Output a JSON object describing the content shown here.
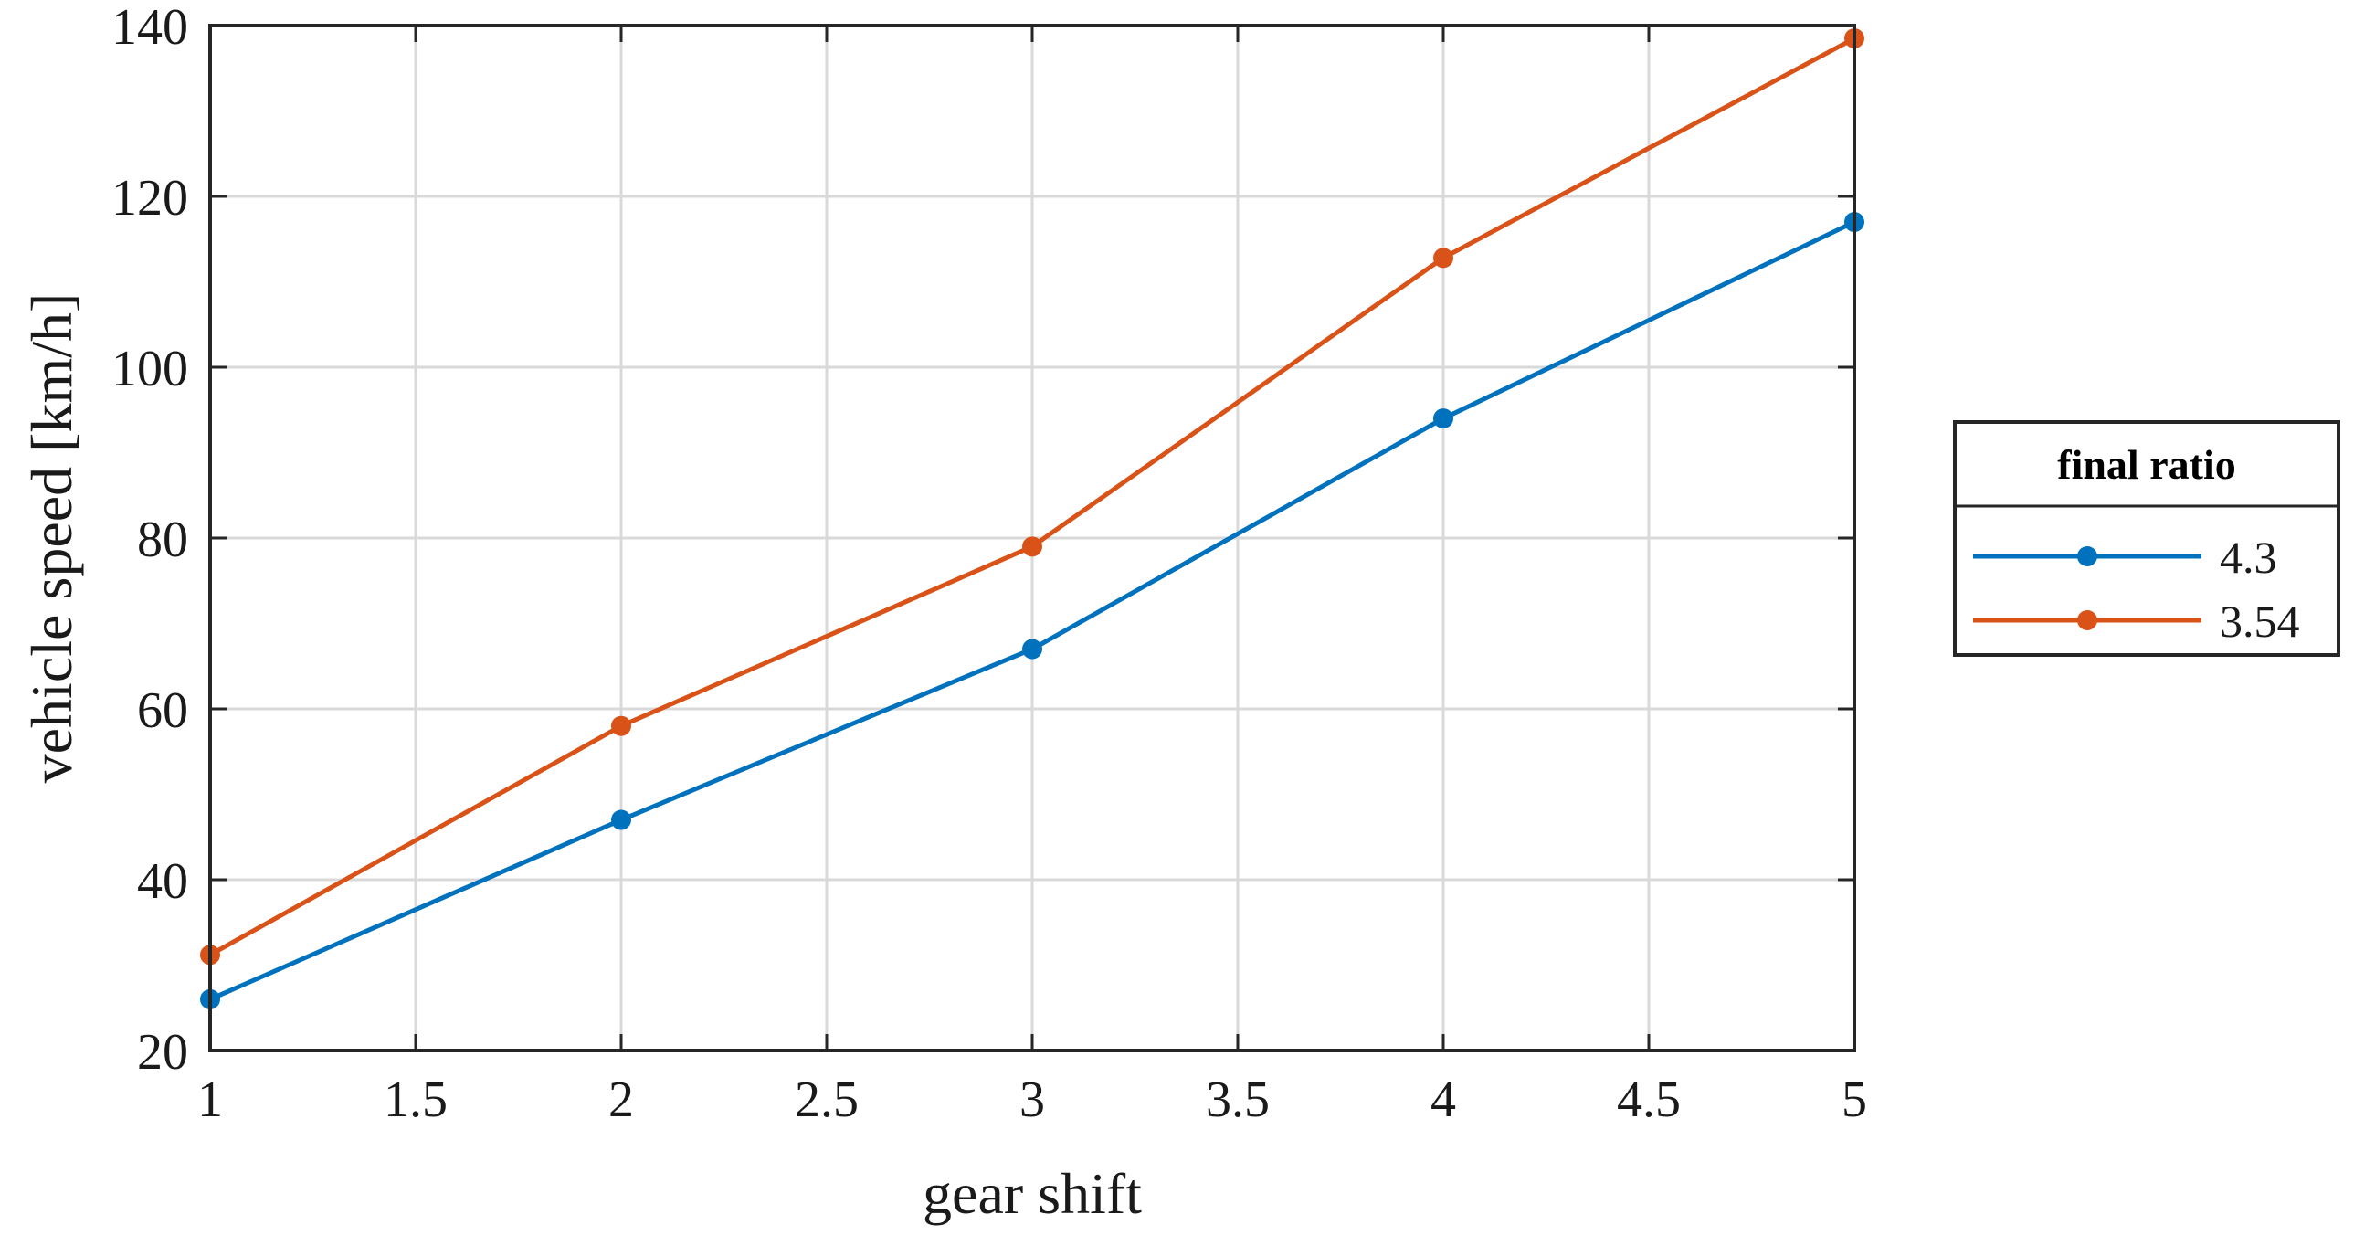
{
  "chart_data": {
    "type": "line",
    "x": [
      1,
      2,
      3,
      4,
      5
    ],
    "series": [
      {
        "name": "4.3",
        "color": "#0072BD",
        "values": [
          26,
          47,
          67,
          94,
          117
        ]
      },
      {
        "name": "3.54",
        "color": "#D95319",
        "values": [
          31.2,
          58,
          79,
          112.8,
          138.5
        ]
      }
    ],
    "xlabel": "gear shift",
    "ylabel": "vehicle speed [km/h]",
    "xlim": [
      1,
      5
    ],
    "ylim": [
      20,
      140
    ],
    "xticks": [
      1,
      1.5,
      2,
      2.5,
      3,
      3.5,
      4,
      4.5,
      5
    ],
    "xtick_labels": [
      "1",
      "1.5",
      "2",
      "2.5",
      "3",
      "3.5",
      "4",
      "4.5",
      "5"
    ],
    "yticks": [
      20,
      40,
      60,
      80,
      100,
      120,
      140
    ],
    "ytick_labels": [
      "20",
      "40",
      "60",
      "80",
      "100",
      "120",
      "140"
    ],
    "grid": true,
    "legend": {
      "title": "final ratio",
      "placement": "outside-right"
    },
    "marker": "circle"
  }
}
